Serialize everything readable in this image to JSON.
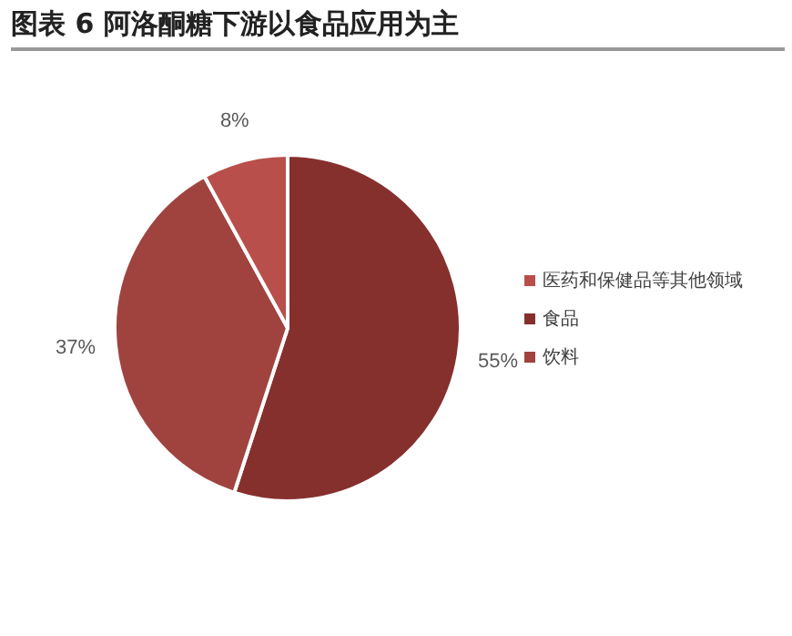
{
  "chart_data": {
    "type": "pie",
    "title": "图表 6 阿洛酮糖下游以食品应用为主",
    "categories": [
      "食品",
      "饮料",
      "医药和保健品等其他领域"
    ],
    "values": [
      55,
      37,
      8
    ],
    "colors": [
      "#86302e",
      "#a0433f",
      "#b94f4b"
    ],
    "value_labels": [
      "55%",
      "37%",
      "8%"
    ],
    "legend": "right"
  }
}
